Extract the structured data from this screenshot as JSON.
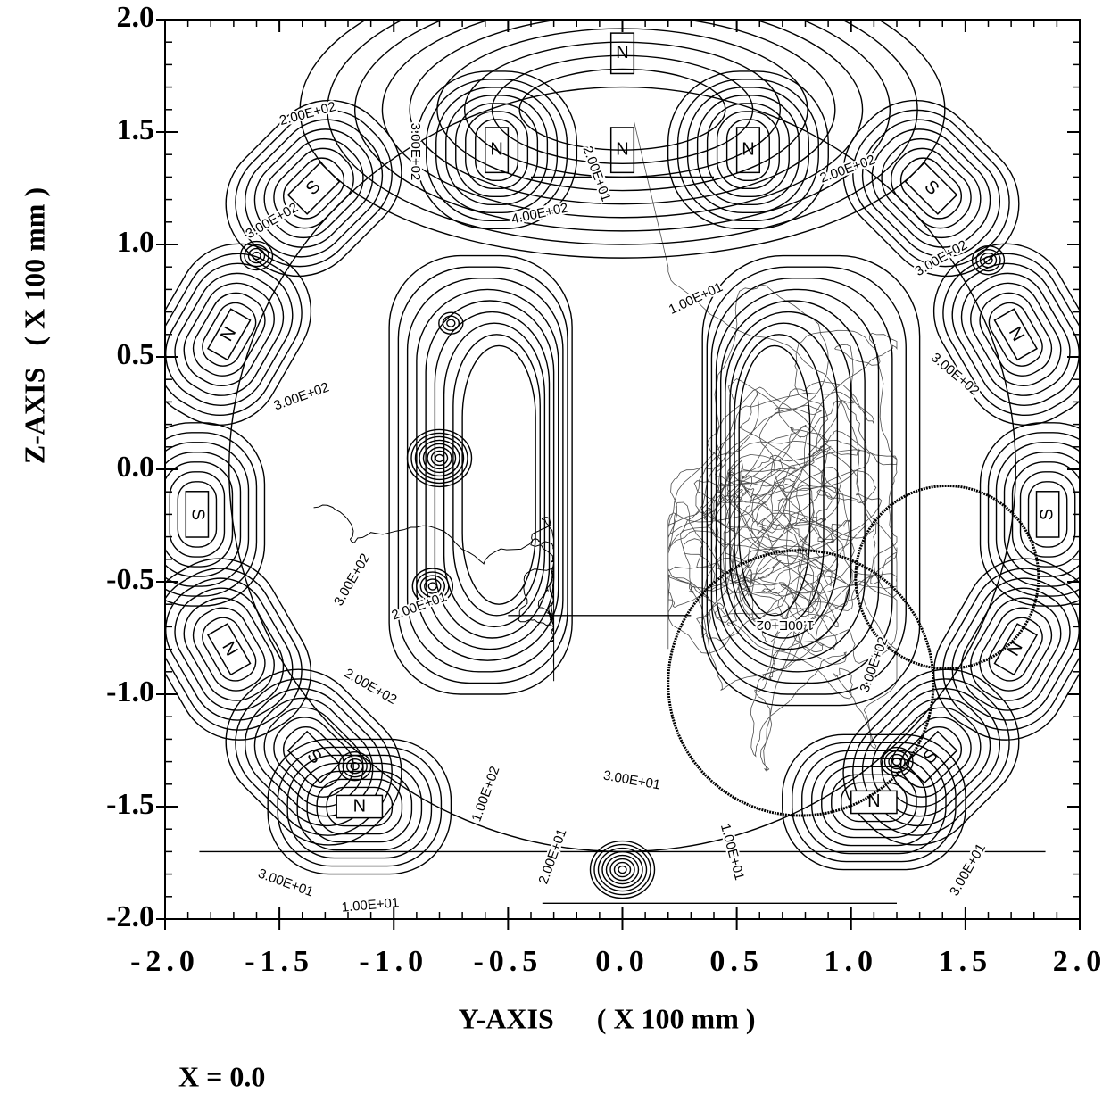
{
  "chart_data": {
    "type": "contour",
    "x_label": "Y-AXIS      ( X 100 mm )",
    "y_label": "Z-AXIS   ( X 100 mm )",
    "annotation": "X = 0.0",
    "xlim": [
      -2,
      2
    ],
    "ylim": [
      -2,
      2
    ],
    "xticks": [
      {
        "value": -2,
        "label": "-2.0"
      },
      {
        "value": -1.5,
        "label": "-1.5"
      },
      {
        "value": -1,
        "label": "-1.0"
      },
      {
        "value": -0.5,
        "label": "-0.5"
      },
      {
        "value": 0,
        "label": "0.0"
      },
      {
        "value": 0.5,
        "label": "0.5"
      },
      {
        "value": 1,
        "label": "1.0"
      },
      {
        "value": 1.5,
        "label": "1.5"
      },
      {
        "value": 2,
        "label": "2.0"
      }
    ],
    "yticks": [
      {
        "value": -2,
        "label": "-2.0"
      },
      {
        "value": -1.5,
        "label": "-1.5"
      },
      {
        "value": -1,
        "label": "-1.0"
      },
      {
        "value": -0.5,
        "label": "-0.5"
      },
      {
        "value": 0,
        "label": "0.0"
      },
      {
        "value": 0.5,
        "label": "0.5"
      },
      {
        "value": 1,
        "label": "1.0"
      },
      {
        "value": 1.5,
        "label": "1.5"
      },
      {
        "value": 2,
        "label": "2.0"
      }
    ],
    "minor_tick_interval": 0.1,
    "contour_labels": [
      "2.00E+02",
      "3.00E+02",
      "4.00E+02",
      "2.00E+01",
      "2.00E+02",
      "3.00E+02",
      "3.00E+02",
      "3.00E+02",
      "3.00E+02",
      "1.00E+01",
      "2.00E+01",
      "3.00E+02",
      "2.00E+02",
      "1.00E+02",
      "3.00E+01",
      "2.00E+01",
      "1.00E+01",
      "3.00E+02",
      "3.00E+01",
      "3.00E+01",
      "1.00E+01",
      "1.00E+02"
    ],
    "magnet_labels": [
      "N",
      "N",
      "N",
      "N",
      "S",
      "S",
      "N",
      "N",
      "S",
      "S",
      "N",
      "N",
      "S",
      "S",
      "N",
      "N"
    ]
  }
}
